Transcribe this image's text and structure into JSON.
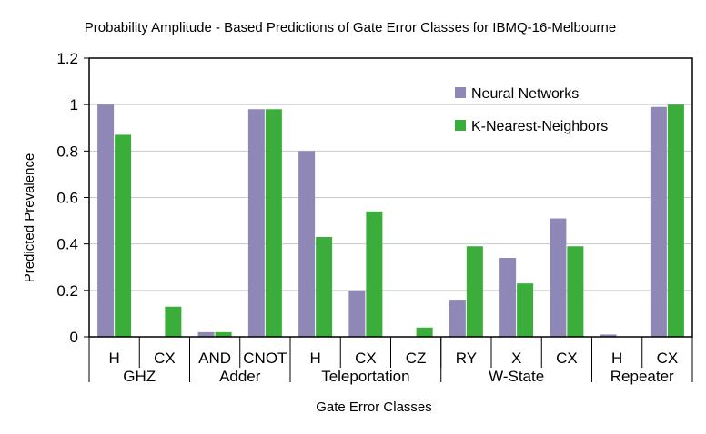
{
  "chart_data": {
    "type": "bar",
    "title": "Probability Amplitude - Based Predictions of Gate Error Classes for IBMQ-16-Melbourne",
    "xlabel": "Gate Error Classes",
    "ylabel": "Predicted Prevalence",
    "ylim": [
      0,
      1.2
    ],
    "yticks": [
      "0",
      "0.2",
      "0.4",
      "0.6",
      "0.8",
      "1",
      "1.2"
    ],
    "grid": true,
    "legend_position": "top-right",
    "categories": [
      "H",
      "CX",
      "AND",
      "CNOT",
      "H",
      "CX",
      "CZ",
      "RY",
      "X",
      "CX",
      "H",
      "CX"
    ],
    "groups": [
      {
        "name": "GHZ",
        "span": 2
      },
      {
        "name": "Adder",
        "span": 2
      },
      {
        "name": "Teleportation",
        "span": 3
      },
      {
        "name": "W-State",
        "span": 3
      },
      {
        "name": "Repeater",
        "span": 2
      }
    ],
    "series": [
      {
        "name": "Neural Networks",
        "color": "#8f87b6",
        "values": [
          1.0,
          0.0,
          0.02,
          0.98,
          0.8,
          0.2,
          0.0,
          0.16,
          0.34,
          0.51,
          0.01,
          0.99
        ]
      },
      {
        "name": "K-Nearest-Neighbors",
        "color": "#3aad3a",
        "values": [
          0.87,
          0.13,
          0.02,
          0.98,
          0.43,
          0.54,
          0.04,
          0.39,
          0.23,
          0.39,
          0.0,
          1.0
        ]
      }
    ]
  }
}
